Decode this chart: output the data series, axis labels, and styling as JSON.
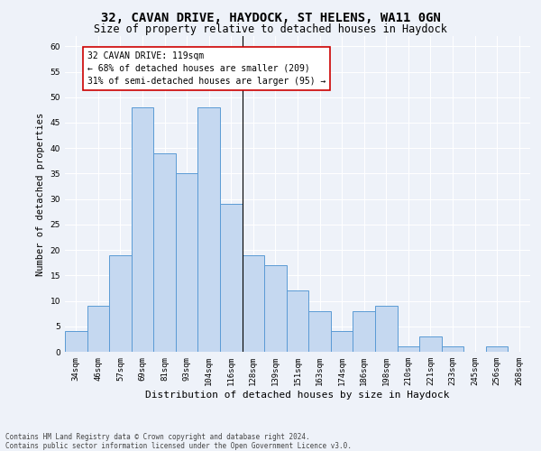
{
  "title_line1": "32, CAVAN DRIVE, HAYDOCK, ST HELENS, WA11 0GN",
  "title_line2": "Size of property relative to detached houses in Haydock",
  "xlabel": "Distribution of detached houses by size in Haydock",
  "ylabel": "Number of detached properties",
  "footer_line1": "Contains HM Land Registry data © Crown copyright and database right 2024.",
  "footer_line2": "Contains public sector information licensed under the Open Government Licence v3.0.",
  "categories": [
    "34sqm",
    "46sqm",
    "57sqm",
    "69sqm",
    "81sqm",
    "93sqm",
    "104sqm",
    "116sqm",
    "128sqm",
    "139sqm",
    "151sqm",
    "163sqm",
    "174sqm",
    "186sqm",
    "198sqm",
    "210sqm",
    "221sqm",
    "233sqm",
    "245sqm",
    "256sqm",
    "268sqm"
  ],
  "values": [
    4,
    9,
    19,
    48,
    39,
    35,
    48,
    29,
    19,
    17,
    12,
    8,
    4,
    8,
    9,
    1,
    3,
    1,
    0,
    1,
    0
  ],
  "bar_color": "#c5d8f0",
  "bar_edge_color": "#5b9bd5",
  "highlight_index": 7,
  "highlight_line_color": "#000000",
  "annotation_text": "32 CAVAN DRIVE: 119sqm\n← 68% of detached houses are smaller (209)\n31% of semi-detached houses are larger (95) →",
  "annotation_box_color": "#ffffff",
  "annotation_box_edge_color": "#cc0000",
  "ylim": [
    0,
    62
  ],
  "yticks": [
    0,
    5,
    10,
    15,
    20,
    25,
    30,
    35,
    40,
    45,
    50,
    55,
    60
  ],
  "background_color": "#eef2f9",
  "grid_color": "#ffffff",
  "title1_fontsize": 10,
  "title2_fontsize": 8.5,
  "xlabel_fontsize": 8,
  "ylabel_fontsize": 7.5,
  "tick_fontsize": 6.5,
  "annotation_fontsize": 7,
  "footer_fontsize": 5.5
}
